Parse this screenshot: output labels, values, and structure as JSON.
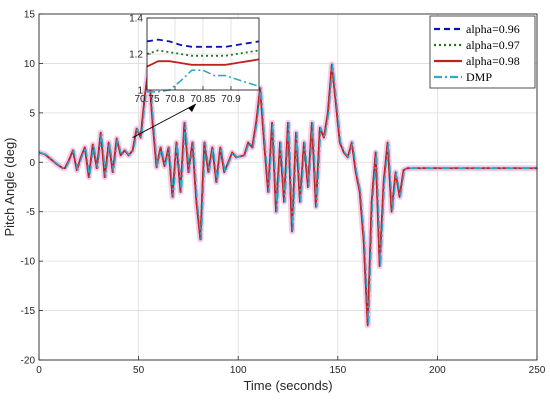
{
  "colors": {
    "alpha_096": "#0a14b4",
    "alpha_097": "#1e7a1e",
    "alpha_098": "#c0231e",
    "dmp": "#2eaac8",
    "shade": "#f2c2e8",
    "arrow": "#000000"
  },
  "chart_data": [
    {
      "type": "line",
      "title": "",
      "xlabel": "Time (seconds)",
      "ylabel": "Pitch Angle (deg)",
      "xlim": [
        0,
        250
      ],
      "ylim": [
        -20,
        15
      ],
      "grid": true,
      "legend_position": "top-right",
      "x_ticks": [
        {
          "value": 0,
          "label": "0"
        },
        {
          "value": 50,
          "label": "50"
        },
        {
          "value": 100,
          "label": "100"
        },
        {
          "value": 150,
          "label": "150"
        },
        {
          "value": 200,
          "label": "200"
        },
        {
          "value": 250,
          "label": "250"
        }
      ],
      "y_ticks": [
        {
          "value": 15,
          "label": "15"
        },
        {
          "value": 10,
          "label": "10"
        },
        {
          "value": 5,
          "label": "5"
        },
        {
          "value": 0,
          "label": "0"
        },
        {
          "value": -5,
          "label": "-5"
        },
        {
          "value": -10,
          "label": "-10"
        },
        {
          "value": -15,
          "label": "-15"
        },
        {
          "value": -20,
          "label": "-20"
        }
      ],
      "x": [
        0,
        3,
        6,
        9,
        12,
        13,
        15,
        17,
        19,
        21,
        23,
        25,
        27,
        29,
        31,
        33,
        35,
        37,
        39,
        41,
        43,
        45,
        47,
        49,
        51,
        53,
        55,
        57,
        59,
        61,
        63,
        65,
        67,
        69,
        71,
        73,
        75,
        77,
        79,
        81,
        83,
        85,
        87,
        89,
        91,
        93,
        95,
        97,
        99,
        101,
        103,
        105,
        107,
        109,
        111,
        113,
        115,
        117,
        119,
        121,
        123,
        125,
        127,
        129,
        131,
        133,
        135,
        137,
        139,
        141,
        143,
        145,
        147,
        149,
        151,
        153,
        155,
        157,
        159,
        161,
        163,
        165,
        167,
        169,
        171,
        173,
        175,
        177,
        179,
        181,
        183,
        185,
        190,
        200,
        215,
        230,
        250
      ],
      "series": [
        {
          "name": "alpha=0.96",
          "color_key": "alpha_096",
          "dash": "6,4",
          "values": [
            1,
            0.8,
            0.3,
            -0.2,
            -0.6,
            -0.6,
            0.2,
            1.2,
            -0.8,
            0.5,
            1.5,
            -1.5,
            1.8,
            -0.6,
            3.0,
            -1.5,
            2.0,
            -1.0,
            2.4,
            0.7,
            1.2,
            0.7,
            1.2,
            3.4,
            2.5,
            6.5,
            9.6,
            4.0,
            -0.5,
            1.5,
            -0.4,
            1.5,
            -3.5,
            2.0,
            -3.0,
            4.0,
            -1.0,
            2.0,
            -4.0,
            -7.8,
            2.0,
            -1.0,
            1.5,
            -2.0,
            1.5,
            -1.0,
            0.0,
            1.0,
            0.5,
            0.6,
            0.7,
            2.0,
            1.5,
            4.0,
            7.5,
            2.0,
            -3.0,
            4.0,
            -5.0,
            2.0,
            -4.0,
            4.0,
            -7.0,
            3.0,
            -4.0,
            2.0,
            -2.5,
            4.0,
            -4.5,
            3.5,
            2.5,
            5.0,
            9.9,
            6.0,
            2.0,
            1.0,
            0.5,
            2.0,
            -1.0,
            -3.0,
            -8.0,
            -16.5,
            -4.0,
            1.0,
            -10.5,
            -2.0,
            2.0,
            -5.0,
            -1.0,
            -3.5,
            -0.8,
            -0.6,
            -0.6,
            -0.6,
            -0.6,
            -0.6,
            -0.6
          ]
        },
        {
          "name": "alpha=0.97",
          "color_key": "alpha_097",
          "dash": "2,3",
          "values": [
            1,
            0.8,
            0.3,
            -0.2,
            -0.6,
            -0.6,
            0.2,
            1.2,
            -0.8,
            0.5,
            1.5,
            -1.5,
            1.8,
            -0.6,
            3.0,
            -1.5,
            2.0,
            -1.0,
            2.4,
            0.7,
            1.2,
            0.7,
            1.2,
            3.4,
            2.5,
            6.5,
            9.6,
            4.0,
            -0.5,
            1.5,
            -0.4,
            1.5,
            -3.5,
            2.0,
            -3.0,
            4.0,
            -1.0,
            2.0,
            -4.0,
            -7.8,
            2.0,
            -1.0,
            1.5,
            -2.0,
            1.5,
            -1.0,
            0.0,
            1.0,
            0.5,
            0.6,
            0.7,
            2.0,
            1.5,
            4.0,
            7.5,
            2.0,
            -3.0,
            4.0,
            -5.0,
            2.0,
            -4.0,
            4.0,
            -7.0,
            3.0,
            -4.0,
            2.0,
            -2.5,
            4.0,
            -4.5,
            3.5,
            2.5,
            5.0,
            9.9,
            6.0,
            2.0,
            1.0,
            0.5,
            2.0,
            -1.0,
            -3.0,
            -8.0,
            -16.5,
            -4.0,
            1.0,
            -10.5,
            -2.0,
            2.0,
            -5.0,
            -1.0,
            -3.5,
            -0.8,
            -0.6,
            -0.6,
            -0.6,
            -0.6,
            -0.6,
            -0.6
          ]
        },
        {
          "name": "alpha=0.98",
          "color_key": "alpha_098",
          "dash": "",
          "values": [
            1,
            0.8,
            0.3,
            -0.2,
            -0.6,
            -0.6,
            0.2,
            1.2,
            -0.8,
            0.5,
            1.5,
            -1.5,
            1.8,
            -0.6,
            3.0,
            -1.5,
            2.0,
            -1.0,
            2.4,
            0.7,
            1.2,
            0.7,
            1.2,
            3.4,
            2.5,
            6.5,
            9.6,
            4.0,
            -0.5,
            1.5,
            -0.4,
            1.5,
            -3.5,
            2.0,
            -3.0,
            4.0,
            -1.0,
            2.0,
            -4.0,
            -7.8,
            2.0,
            -1.0,
            1.5,
            -2.0,
            1.5,
            -1.0,
            0.0,
            1.0,
            0.5,
            0.6,
            0.7,
            2.0,
            1.5,
            4.0,
            7.5,
            2.0,
            -3.0,
            4.0,
            -5.0,
            2.0,
            -4.0,
            4.0,
            -7.0,
            3.0,
            -4.0,
            2.0,
            -2.5,
            4.0,
            -4.5,
            3.5,
            2.5,
            5.0,
            9.9,
            6.0,
            2.0,
            1.0,
            0.5,
            2.0,
            -1.0,
            -3.0,
            -8.0,
            -16.5,
            -4.0,
            1.0,
            -10.5,
            -2.0,
            2.0,
            -5.0,
            -1.0,
            -3.5,
            -0.8,
            -0.6,
            -0.6,
            -0.6,
            -0.6,
            -0.6,
            -0.6
          ]
        },
        {
          "name": "DMP",
          "color_key": "dmp",
          "dash": "8,3,2,3",
          "values": [
            1,
            0.8,
            0.3,
            -0.2,
            -0.6,
            -0.6,
            0.2,
            1.2,
            -0.8,
            0.5,
            1.5,
            -1.5,
            1.8,
            -0.6,
            3.0,
            -1.5,
            2.0,
            -1.0,
            2.4,
            0.7,
            1.2,
            0.7,
            1.2,
            3.4,
            2.5,
            6.5,
            9.6,
            4.0,
            -0.5,
            1.5,
            -0.4,
            1.5,
            -3.5,
            2.0,
            -3.0,
            4.0,
            -1.0,
            2.0,
            -4.0,
            -7.8,
            2.0,
            -1.0,
            1.5,
            -2.0,
            1.5,
            -1.0,
            0.0,
            1.0,
            0.5,
            0.6,
            0.7,
            2.0,
            1.5,
            4.0,
            7.5,
            2.0,
            -3.0,
            4.0,
            -5.0,
            2.0,
            -4.0,
            4.0,
            -7.0,
            3.0,
            -4.0,
            2.0,
            -2.5,
            4.0,
            -4.5,
            3.5,
            2.5,
            5.0,
            9.9,
            6.0,
            2.0,
            1.0,
            0.5,
            2.0,
            -1.0,
            -3.0,
            -8.0,
            -16.5,
            -4.0,
            1.0,
            -10.5,
            -2.0,
            2.0,
            -5.0,
            -1.0,
            -3.5,
            -0.8,
            -0.6,
            -0.6,
            -0.6,
            -0.6,
            -0.6,
            -0.6
          ]
        }
      ],
      "arrow_annotation": {
        "from": [
          70.8,
          1.1
        ],
        "to": [
          47,
          2.5
        ]
      }
    },
    {
      "type": "line",
      "title": "",
      "xlabel": "",
      "ylabel": "",
      "xlim": [
        70.75,
        70.95
      ],
      "ylim": [
        1.0,
        1.4
      ],
      "grid": true,
      "x_ticks": [
        {
          "value": 70.75,
          "label": "70.75"
        },
        {
          "value": 70.8,
          "label": "70.8"
        },
        {
          "value": 70.85,
          "label": "70.85"
        },
        {
          "value": 70.9,
          "label": "70.9"
        }
      ],
      "y_ticks": [
        {
          "value": 1.4,
          "label": "1.4"
        },
        {
          "value": 1.2,
          "label": "1.2"
        },
        {
          "value": 1,
          "label": "1"
        }
      ],
      "x": [
        70.75,
        70.77,
        70.79,
        70.81,
        70.83,
        70.85,
        70.87,
        70.89,
        70.91,
        70.93,
        70.95
      ],
      "series": [
        {
          "name": "alpha=0.96",
          "color_key": "alpha_096",
          "dash": "6,4",
          "values": [
            1.27,
            1.28,
            1.27,
            1.25,
            1.24,
            1.24,
            1.24,
            1.24,
            1.25,
            1.26,
            1.27
          ]
        },
        {
          "name": "alpha=0.97",
          "color_key": "alpha_097",
          "dash": "2,3",
          "values": [
            1.2,
            1.22,
            1.21,
            1.2,
            1.19,
            1.19,
            1.19,
            1.19,
            1.2,
            1.21,
            1.22
          ]
        },
        {
          "name": "alpha=0.98",
          "color_key": "alpha_098",
          "dash": "",
          "values": [
            1.13,
            1.16,
            1.16,
            1.15,
            1.14,
            1.14,
            1.14,
            1.14,
            1.15,
            1.16,
            1.17
          ]
        },
        {
          "name": "DMP",
          "color_key": "dmp",
          "dash": "8,3,2,3",
          "values": [
            0.99,
            0.99,
            1.0,
            1.05,
            1.11,
            1.11,
            1.08,
            1.08,
            1.06,
            1.04,
            1.02
          ]
        }
      ]
    }
  ],
  "legend": {
    "items": [
      {
        "label": "alpha=0.96",
        "color_key": "alpha_096",
        "dash": "6,4"
      },
      {
        "label": "alpha=0.97",
        "color_key": "alpha_097",
        "dash": "2,3"
      },
      {
        "label": "alpha=0.98",
        "color_key": "alpha_098",
        "dash": ""
      },
      {
        "label": "DMP",
        "color_key": "dmp",
        "dash": "8,3,2,3"
      }
    ]
  }
}
